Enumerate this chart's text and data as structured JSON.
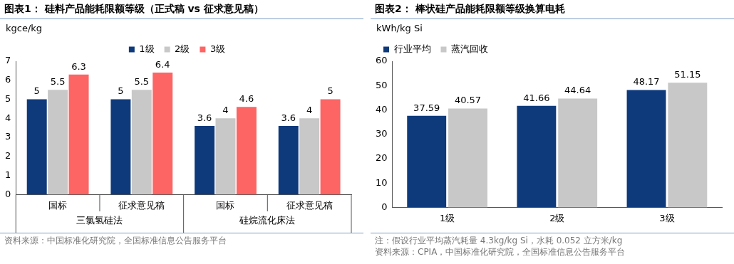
{
  "chart_data": [
    {
      "type": "bar",
      "title": "图表1：  硅料产品能耗限额等级（正式稿 vs 征求意见稿）",
      "ylabel": "kgce/kg",
      "categories": [
        "国标",
        "征求意见稿",
        "国标",
        "征求意见稿"
      ],
      "series": [
        {
          "name": "1级",
          "color": "#0e3a7c",
          "values": [
            5,
            5,
            3.6,
            3.6
          ]
        },
        {
          "name": "2级",
          "color": "#c8c8c8",
          "values": [
            5.5,
            5.5,
            4,
            4
          ]
        },
        {
          "name": "3级",
          "color": "#fd6464",
          "values": [
            6.3,
            6.4,
            4.6,
            5
          ]
        }
      ],
      "ylim": [
        0,
        7
      ],
      "yticks": [
        0,
        1,
        2,
        3,
        4,
        5,
        6,
        7
      ],
      "grid": false,
      "legend": "top",
      "data_labels": true,
      "annotations": [
        "三氯氢硅法",
        "硅烷流化床法",
        "资料来源：中国标准化研究院，全国标准信息公告服务平台"
      ]
    },
    {
      "type": "bar",
      "title": "图表2：  棒状硅产品能耗限额等级换算电耗",
      "ylabel": "kWh/kg Si",
      "categories": [
        "1级",
        "2级",
        "3级"
      ],
      "series": [
        {
          "name": "行业平均",
          "color": "#0e3a7c",
          "values": [
            37.59,
            41.66,
            48.17
          ]
        },
        {
          "name": "蒸汽回收",
          "color": "#c8c8c8",
          "values": [
            40.57,
            44.64,
            51.15
          ]
        }
      ],
      "ylim": [
        0,
        60
      ],
      "yticks": [
        0,
        10,
        20,
        30,
        40,
        50,
        60
      ],
      "grid": false,
      "legend": "top left",
      "data_labels": true,
      "annotations": [
        "注：假设行业平均蒸汽耗量 4.3kg/kg Si，水耗 0.052 立方米/kg",
        "资料来源：CPIA，中国标准化研究院，全国标准信息公告服务平台"
      ]
    }
  ]
}
